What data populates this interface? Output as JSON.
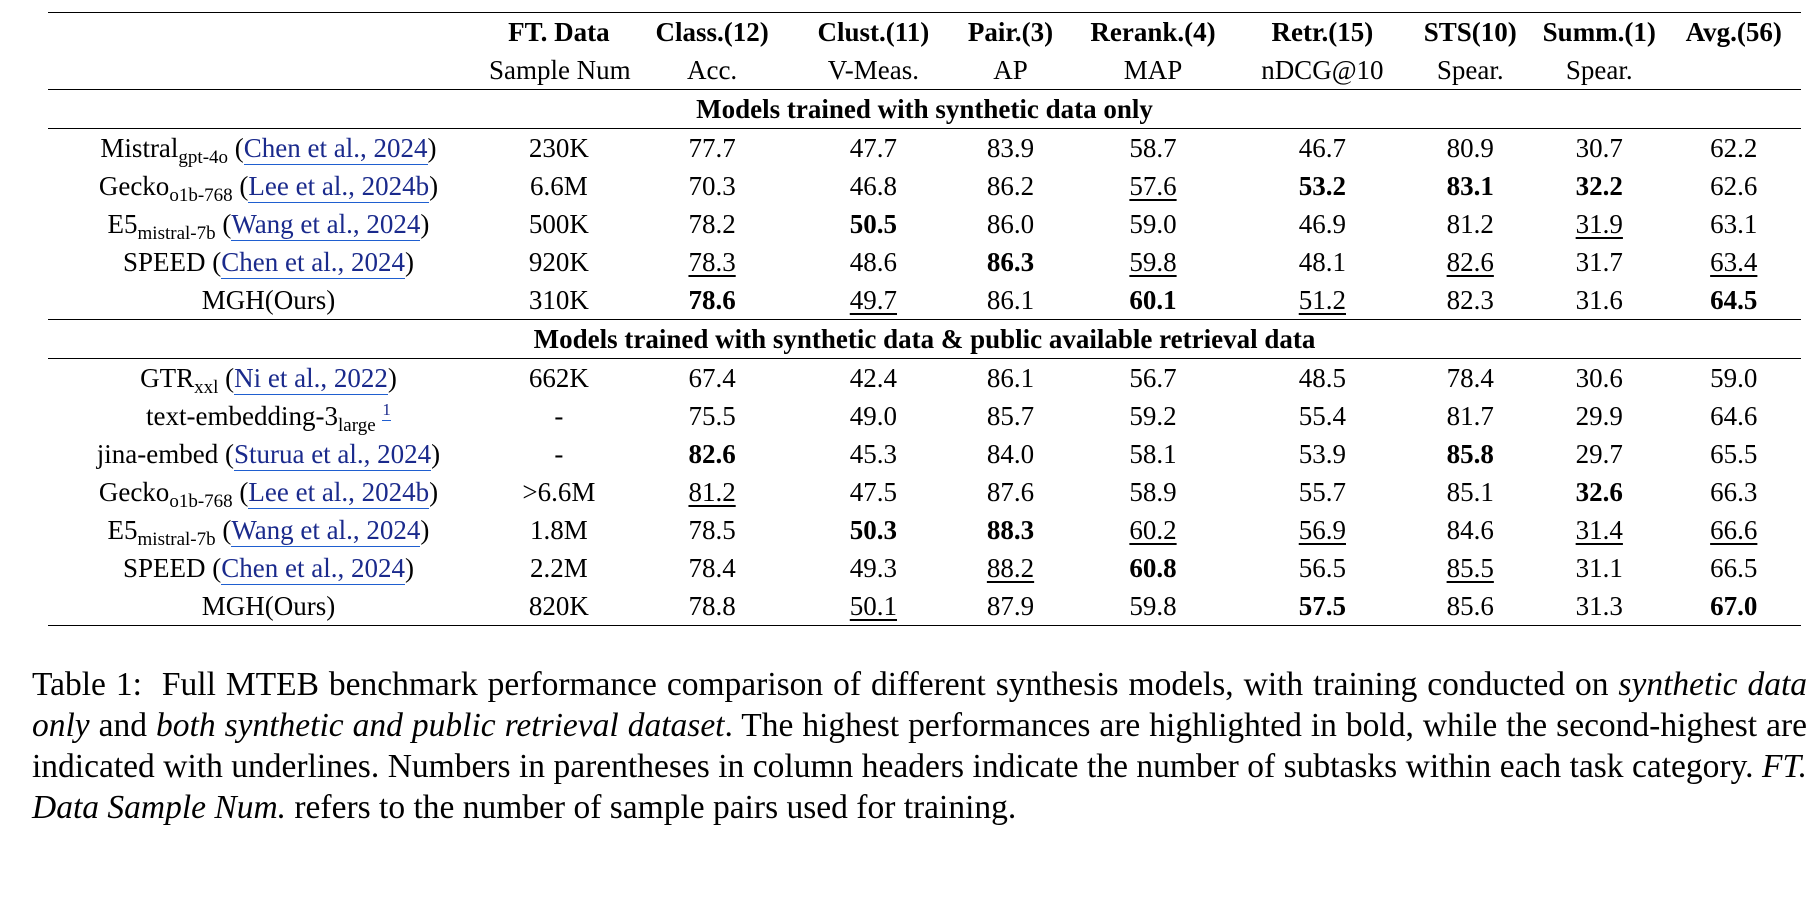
{
  "header": {
    "row1": [
      "",
      "FT. Data",
      "Class.(12)",
      "Clust.(11)",
      "Pair.(3)",
      "Rerank.(4)",
      "Retr.(15)",
      "STS(10)",
      "Summ.(1)",
      "Avg.(56)"
    ],
    "row2": [
      "",
      "Sample Num",
      "Acc.",
      "V-Meas.",
      "AP",
      "MAP",
      "nDCG@10",
      "Spear.",
      "Spear.",
      ""
    ]
  },
  "sections": [
    {
      "title": "Models trained with synthetic data only",
      "rows": [
        {
          "model": "Mistral",
          "sub": "gpt-4o",
          "cite": "Chen et al., 2024",
          "values": [
            "230K",
            "77.7",
            "47.7",
            "83.9",
            "58.7",
            "46.7",
            "80.9",
            "30.7",
            "62.2"
          ]
        },
        {
          "model": "Gecko",
          "sub": "o1b-768",
          "cite": "Lee et al., 2024b",
          "values": [
            "6.6M",
            "70.3",
            "46.8",
            "86.2",
            "57.6",
            "53.2",
            "83.1",
            "32.2",
            "62.6"
          ]
        },
        {
          "model": "E5",
          "sub": "mistral-7b",
          "cite": "Wang et al., 2024",
          "values": [
            "500K",
            "78.2",
            "50.5",
            "86.0",
            "59.0",
            "46.9",
            "81.2",
            "31.9",
            "63.1"
          ]
        },
        {
          "model": "SPEED",
          "sub": "",
          "cite": "Chen et al., 2024",
          "values": [
            "920K",
            "78.3",
            "48.6",
            "86.3",
            "59.8",
            "48.1",
            "82.6",
            "31.7",
            "63.4"
          ]
        },
        {
          "model": "MGH(Ours)",
          "sub": "",
          "cite": "",
          "values": [
            "310K",
            "78.6",
            "49.7",
            "86.1",
            "60.1",
            "51.2",
            "82.3",
            "31.6",
            "64.5"
          ]
        }
      ]
    },
    {
      "title": "Models trained with synthetic data & public available retrieval data",
      "rows": [
        {
          "model": "GTR",
          "sub": "xxl",
          "cite": "Ni et al., 2022",
          "values": [
            "662K",
            "67.4",
            "42.4",
            "86.1",
            "56.7",
            "48.5",
            "78.4",
            "30.6",
            "59.0"
          ]
        },
        {
          "model": "text-embedding-3",
          "sub": "large",
          "sup": "1",
          "cite": "",
          "values": [
            "-",
            "75.5",
            "49.0",
            "85.7",
            "59.2",
            "55.4",
            "81.7",
            "29.9",
            "64.6"
          ]
        },
        {
          "model": "jina-embed",
          "sub": "",
          "cite": "Sturua et al., 2024",
          "values": [
            "-",
            "82.6",
            "45.3",
            "84.0",
            "58.1",
            "53.9",
            "85.8",
            "29.7",
            "65.5"
          ]
        },
        {
          "model": "Gecko",
          "sub": "o1b-768",
          "cite": "Lee et al., 2024b",
          "values": [
            ">6.6M",
            "81.2",
            "47.5",
            "87.6",
            "58.9",
            "55.7",
            "85.1",
            "32.6",
            "66.3"
          ]
        },
        {
          "model": "E5",
          "sub": "mistral-7b",
          "cite": "Wang et al., 2024",
          "values": [
            "1.8M",
            "78.5",
            "50.3",
            "88.3",
            "60.2",
            "56.9",
            "84.6",
            "31.4",
            "66.6"
          ]
        },
        {
          "model": "SPEED",
          "sub": "",
          "cite": "Chen et al., 2024",
          "values": [
            "2.2M",
            "78.4",
            "49.3",
            "88.2",
            "60.8",
            "56.5",
            "85.5",
            "31.1",
            "66.5"
          ]
        },
        {
          "model": "MGH(Ours)",
          "sub": "",
          "cite": "",
          "values": [
            "820K",
            "78.8",
            "50.1",
            "87.9",
            "59.8",
            "57.5",
            "85.6",
            "31.3",
            "67.0"
          ]
        }
      ]
    }
  ],
  "caption": {
    "label": "Table 1:",
    "t1": "Full MTEB benchmark performance comparison of different synthesis models, with training conducted on ",
    "i1": "synthetic data only",
    "t2": " and ",
    "i2": "both synthetic and public retrieval dataset",
    "t3": ". The highest performances are highlighted in bold, while the second-highest are indicated with underlines. Numbers in parentheses in column headers indicate the number of subtasks within each task category. ",
    "i3": "FT. Data Sample Num.",
    "t4": " refers to the number of sample pairs used for training."
  }
}
